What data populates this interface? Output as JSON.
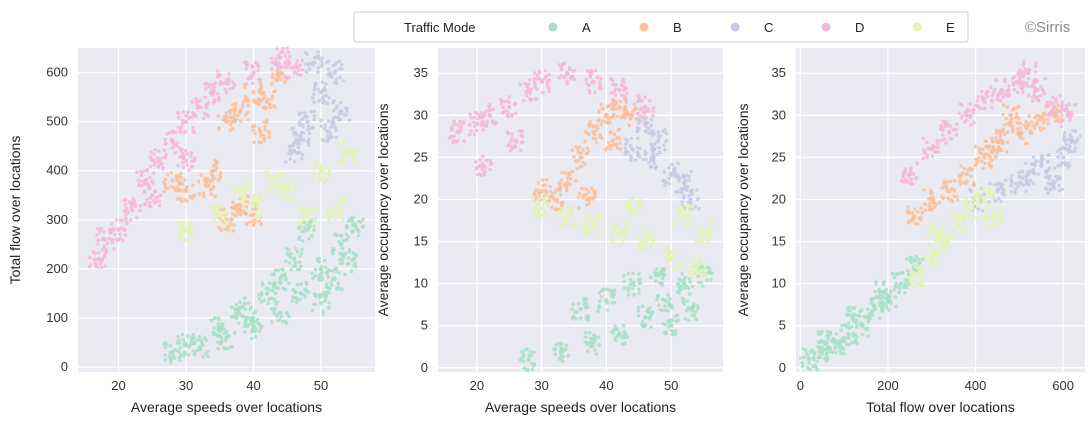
{
  "watermark": "©Sirris",
  "legend": {
    "title": "Traffic Mode",
    "entries": [
      {
        "label": "A",
        "color": "#a8e0c6"
      },
      {
        "label": "B",
        "color": "#f9c19a"
      },
      {
        "label": "C",
        "color": "#c5cbe3"
      },
      {
        "label": "D",
        "color": "#f4b8d8"
      },
      {
        "label": "E",
        "color": "#e5f3b4"
      }
    ]
  },
  "chart_data": [
    {
      "type": "scatter",
      "xlabel": "Average speeds over locations",
      "ylabel": "Total flow over locations",
      "xlim": [
        14,
        58
      ],
      "ylim": [
        -10,
        650
      ],
      "xticks": [
        20,
        30,
        40,
        50
      ],
      "yticks": [
        0,
        100,
        200,
        300,
        400,
        500,
        600
      ],
      "grid": true,
      "series": [
        {
          "name": "A",
          "points": [
            [
              28,
              30
            ],
            [
              32,
              40
            ],
            [
              36,
              60
            ],
            [
              40,
              80
            ],
            [
              44,
              110
            ],
            [
              47,
              150
            ],
            [
              50,
              200
            ],
            [
              53,
              250
            ],
            [
              55,
              290
            ],
            [
              46,
              220
            ],
            [
              42,
              150
            ],
            [
              38,
              120
            ],
            [
              48,
              280
            ],
            [
              52,
              180
            ],
            [
              44,
              180
            ],
            [
              39,
              100
            ],
            [
              35,
              80
            ],
            [
              30,
              45
            ],
            [
              50,
              130
            ],
            [
              54,
              210
            ]
          ]
        },
        {
          "name": "B",
          "points": [
            [
              28,
              380
            ],
            [
              30,
              360
            ],
            [
              34,
              400
            ],
            [
              36,
              500
            ],
            [
              38,
              520
            ],
            [
              40,
              560
            ],
            [
              42,
              540
            ],
            [
              44,
              600
            ],
            [
              38,
              330
            ],
            [
              40,
              310
            ],
            [
              36,
              300
            ],
            [
              33,
              370
            ],
            [
              41,
              480
            ]
          ]
        },
        {
          "name": "C",
          "points": [
            [
              46,
              440
            ],
            [
              48,
              500
            ],
            [
              50,
              560
            ],
            [
              52,
              600
            ],
            [
              53,
              520
            ],
            [
              49,
              620
            ],
            [
              47,
              470
            ],
            [
              51,
              480
            ]
          ]
        },
        {
          "name": "D",
          "points": [
            [
              17,
              220
            ],
            [
              18,
              260
            ],
            [
              20,
              280
            ],
            [
              22,
              320
            ],
            [
              24,
              380
            ],
            [
              26,
              420
            ],
            [
              28,
              460
            ],
            [
              30,
              500
            ],
            [
              32,
              530
            ],
            [
              34,
              560
            ],
            [
              36,
              580
            ],
            [
              40,
              600
            ],
            [
              44,
              630
            ],
            [
              46,
              610
            ],
            [
              30,
              420
            ],
            [
              25,
              350
            ]
          ]
        },
        {
          "name": "E",
          "points": [
            [
              30,
              280
            ],
            [
              35,
              310
            ],
            [
              40,
              330
            ],
            [
              45,
              360
            ],
            [
              50,
              400
            ],
            [
              54,
              440
            ],
            [
              52,
              320
            ],
            [
              48,
              310
            ],
            [
              43,
              380
            ],
            [
              38,
              360
            ]
          ]
        }
      ]
    },
    {
      "type": "scatter",
      "xlabel": "Average speeds over locations",
      "ylabel": "Average occupancy over locations",
      "xlim": [
        14,
        58
      ],
      "ylim": [
        -0.5,
        38
      ],
      "xticks": [
        20,
        30,
        40,
        50
      ],
      "yticks": [
        0,
        5,
        10,
        15,
        20,
        25,
        30,
        35
      ],
      "grid": true,
      "series": [
        {
          "name": "A",
          "points": [
            [
              28,
              1
            ],
            [
              33,
              2
            ],
            [
              38,
              3
            ],
            [
              42,
              4
            ],
            [
              46,
              6
            ],
            [
              49,
              8
            ],
            [
              52,
              10
            ],
            [
              55,
              11
            ],
            [
              48,
              11
            ],
            [
              44,
              10
            ],
            [
              40,
              8
            ],
            [
              36,
              7
            ],
            [
              50,
              5
            ],
            [
              53,
              7
            ]
          ]
        },
        {
          "name": "B",
          "points": [
            [
              30,
              21
            ],
            [
              32,
              20
            ],
            [
              34,
              22
            ],
            [
              36,
              25
            ],
            [
              38,
              28
            ],
            [
              40,
              30
            ],
            [
              42,
              31
            ],
            [
              44,
              30
            ],
            [
              37,
              20
            ],
            [
              41,
              27
            ]
          ]
        },
        {
          "name": "C",
          "points": [
            [
              44,
              26
            ],
            [
              47,
              25
            ],
            [
              50,
              23
            ],
            [
              52,
              22
            ],
            [
              53,
              20
            ],
            [
              48,
              27
            ],
            [
              46,
              29
            ]
          ]
        },
        {
          "name": "D",
          "points": [
            [
              17,
              28
            ],
            [
              20,
              29
            ],
            [
              22,
              30
            ],
            [
              25,
              31
            ],
            [
              28,
              33
            ],
            [
              30,
              34
            ],
            [
              34,
              35
            ],
            [
              38,
              34
            ],
            [
              42,
              33
            ],
            [
              46,
              31
            ],
            [
              26,
              27
            ],
            [
              21,
              24
            ]
          ]
        },
        {
          "name": "E",
          "points": [
            [
              30,
              19
            ],
            [
              34,
              18
            ],
            [
              38,
              17
            ],
            [
              42,
              16
            ],
            [
              46,
              15
            ],
            [
              50,
              13
            ],
            [
              54,
              12
            ],
            [
              55,
              16
            ],
            [
              52,
              18
            ],
            [
              44,
              19
            ]
          ]
        }
      ]
    },
    {
      "type": "scatter",
      "xlabel": "Total flow over locations",
      "ylabel": "Average occupancy over locations",
      "xlim": [
        -10,
        650
      ],
      "ylim": [
        -0.5,
        38
      ],
      "xticks": [
        0,
        200,
        400,
        600
      ],
      "yticks": [
        0,
        5,
        10,
        15,
        20,
        25,
        30,
        35
      ],
      "grid": true,
      "series": [
        {
          "name": "A",
          "points": [
            [
              20,
              1
            ],
            [
              50,
              2
            ],
            [
              80,
              3
            ],
            [
              110,
              4
            ],
            [
              140,
              5
            ],
            [
              170,
              7
            ],
            [
              200,
              8
            ],
            [
              230,
              10
            ],
            [
              260,
              12
            ],
            [
              60,
              3
            ],
            [
              120,
              6
            ],
            [
              190,
              9
            ]
          ]
        },
        {
          "name": "B",
          "points": [
            [
              260,
              18
            ],
            [
              300,
              20
            ],
            [
              340,
              21
            ],
            [
              380,
              23
            ],
            [
              420,
              25
            ],
            [
              460,
              27
            ],
            [
              500,
              28
            ],
            [
              540,
              29
            ],
            [
              580,
              30
            ],
            [
              480,
              30
            ],
            [
              440,
              26
            ]
          ]
        },
        {
          "name": "C",
          "points": [
            [
              400,
              20
            ],
            [
              450,
              21
            ],
            [
              500,
              22
            ],
            [
              550,
              24
            ],
            [
              600,
              25
            ],
            [
              620,
              27
            ],
            [
              580,
              22
            ],
            [
              520,
              23
            ]
          ]
        },
        {
          "name": "D",
          "points": [
            [
              250,
              23
            ],
            [
              300,
              26
            ],
            [
              340,
              28
            ],
            [
              380,
              30
            ],
            [
              420,
              32
            ],
            [
              460,
              33
            ],
            [
              500,
              34
            ],
            [
              540,
              33
            ],
            [
              580,
              31
            ],
            [
              610,
              30
            ],
            [
              520,
              35
            ]
          ]
        },
        {
          "name": "E",
          "points": [
            [
              270,
              11
            ],
            [
              300,
              13
            ],
            [
              330,
              15
            ],
            [
              360,
              17
            ],
            [
              390,
              19
            ],
            [
              420,
              20
            ],
            [
              440,
              18
            ],
            [
              310,
              16
            ]
          ]
        }
      ]
    }
  ]
}
